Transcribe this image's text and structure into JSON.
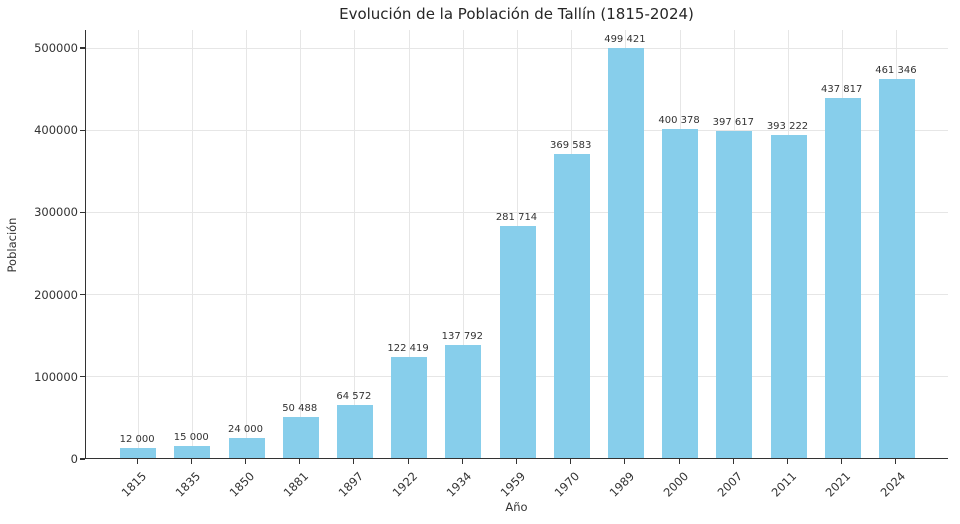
{
  "title": "Evolución de la Población de Tallín (1815-2024)",
  "chart_data": {
    "type": "bar",
    "title": "Evolución de la Población de Tallín (1815-2024)",
    "xlabel": "Año",
    "ylabel": "Población",
    "categories": [
      "1815",
      "1835",
      "1850",
      "1881",
      "1897",
      "1922",
      "1934",
      "1959",
      "1970",
      "1989",
      "2000",
      "2007",
      "2011",
      "2021",
      "2024"
    ],
    "values": [
      12000,
      15000,
      24000,
      50488,
      64572,
      122419,
      137792,
      281714,
      369583,
      499421,
      400378,
      397617,
      393222,
      437817,
      461346
    ],
    "bar_labels": [
      "12 000",
      "15 000",
      "24 000",
      "50 488",
      "64 572",
      "122 419",
      "137 792",
      "281 714",
      "369 583",
      "499 421",
      "400 378",
      "397 617",
      "393 222",
      "437 817",
      "461 346"
    ],
    "yticks": [
      0,
      100000,
      200000,
      300000,
      400000,
      500000
    ],
    "ytick_labels": [
      "0",
      "100000",
      "200000",
      "300000",
      "400000",
      "500000"
    ],
    "ylim": [
      0,
      522000
    ],
    "grid": true,
    "legend_position": "none",
    "bar_color": "#87CEEB",
    "grid_color": "#e6e6e6",
    "spine_color": "#333333",
    "text_color": "#333333",
    "title_color": "#262626"
  }
}
